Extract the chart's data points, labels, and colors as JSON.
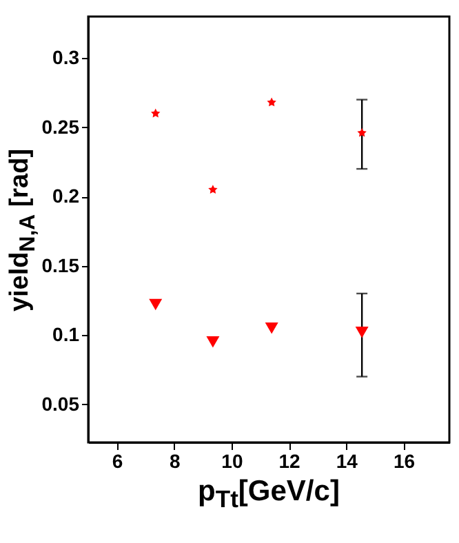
{
  "chart_data": {
    "type": "scatter",
    "xlabel": "p$_{Tt}$[GeV/c]",
    "ylabel": "yield$_{N,A}$ [rad]",
    "x": [
      7.35,
      9.35,
      11.4,
      14.55
    ],
    "series": [
      {
        "color": "#ff0000",
        "marker": "star",
        "values": [
          0.26,
          0.205,
          0.268,
          0.246
        ],
        "errors": [
          null,
          null,
          null,
          [
            0.22,
            0.27
          ]
        ]
      },
      {
        "color": "#ff0000",
        "marker": "triangle",
        "values": [
          0.122,
          0.095,
          0.105,
          0.102
        ],
        "errors": [
          null,
          null,
          null,
          [
            0.07,
            0.13
          ]
        ]
      }
    ],
    "xlim": [
      5,
      17.6
    ],
    "xticks": [
      6,
      8,
      10,
      12,
      14,
      16
    ],
    "ylim": [
      0.0225,
      0.33
    ],
    "yticks": [
      0.05,
      0.1,
      0.15,
      0.2,
      0.25,
      0.3
    ],
    "grid": false
  }
}
